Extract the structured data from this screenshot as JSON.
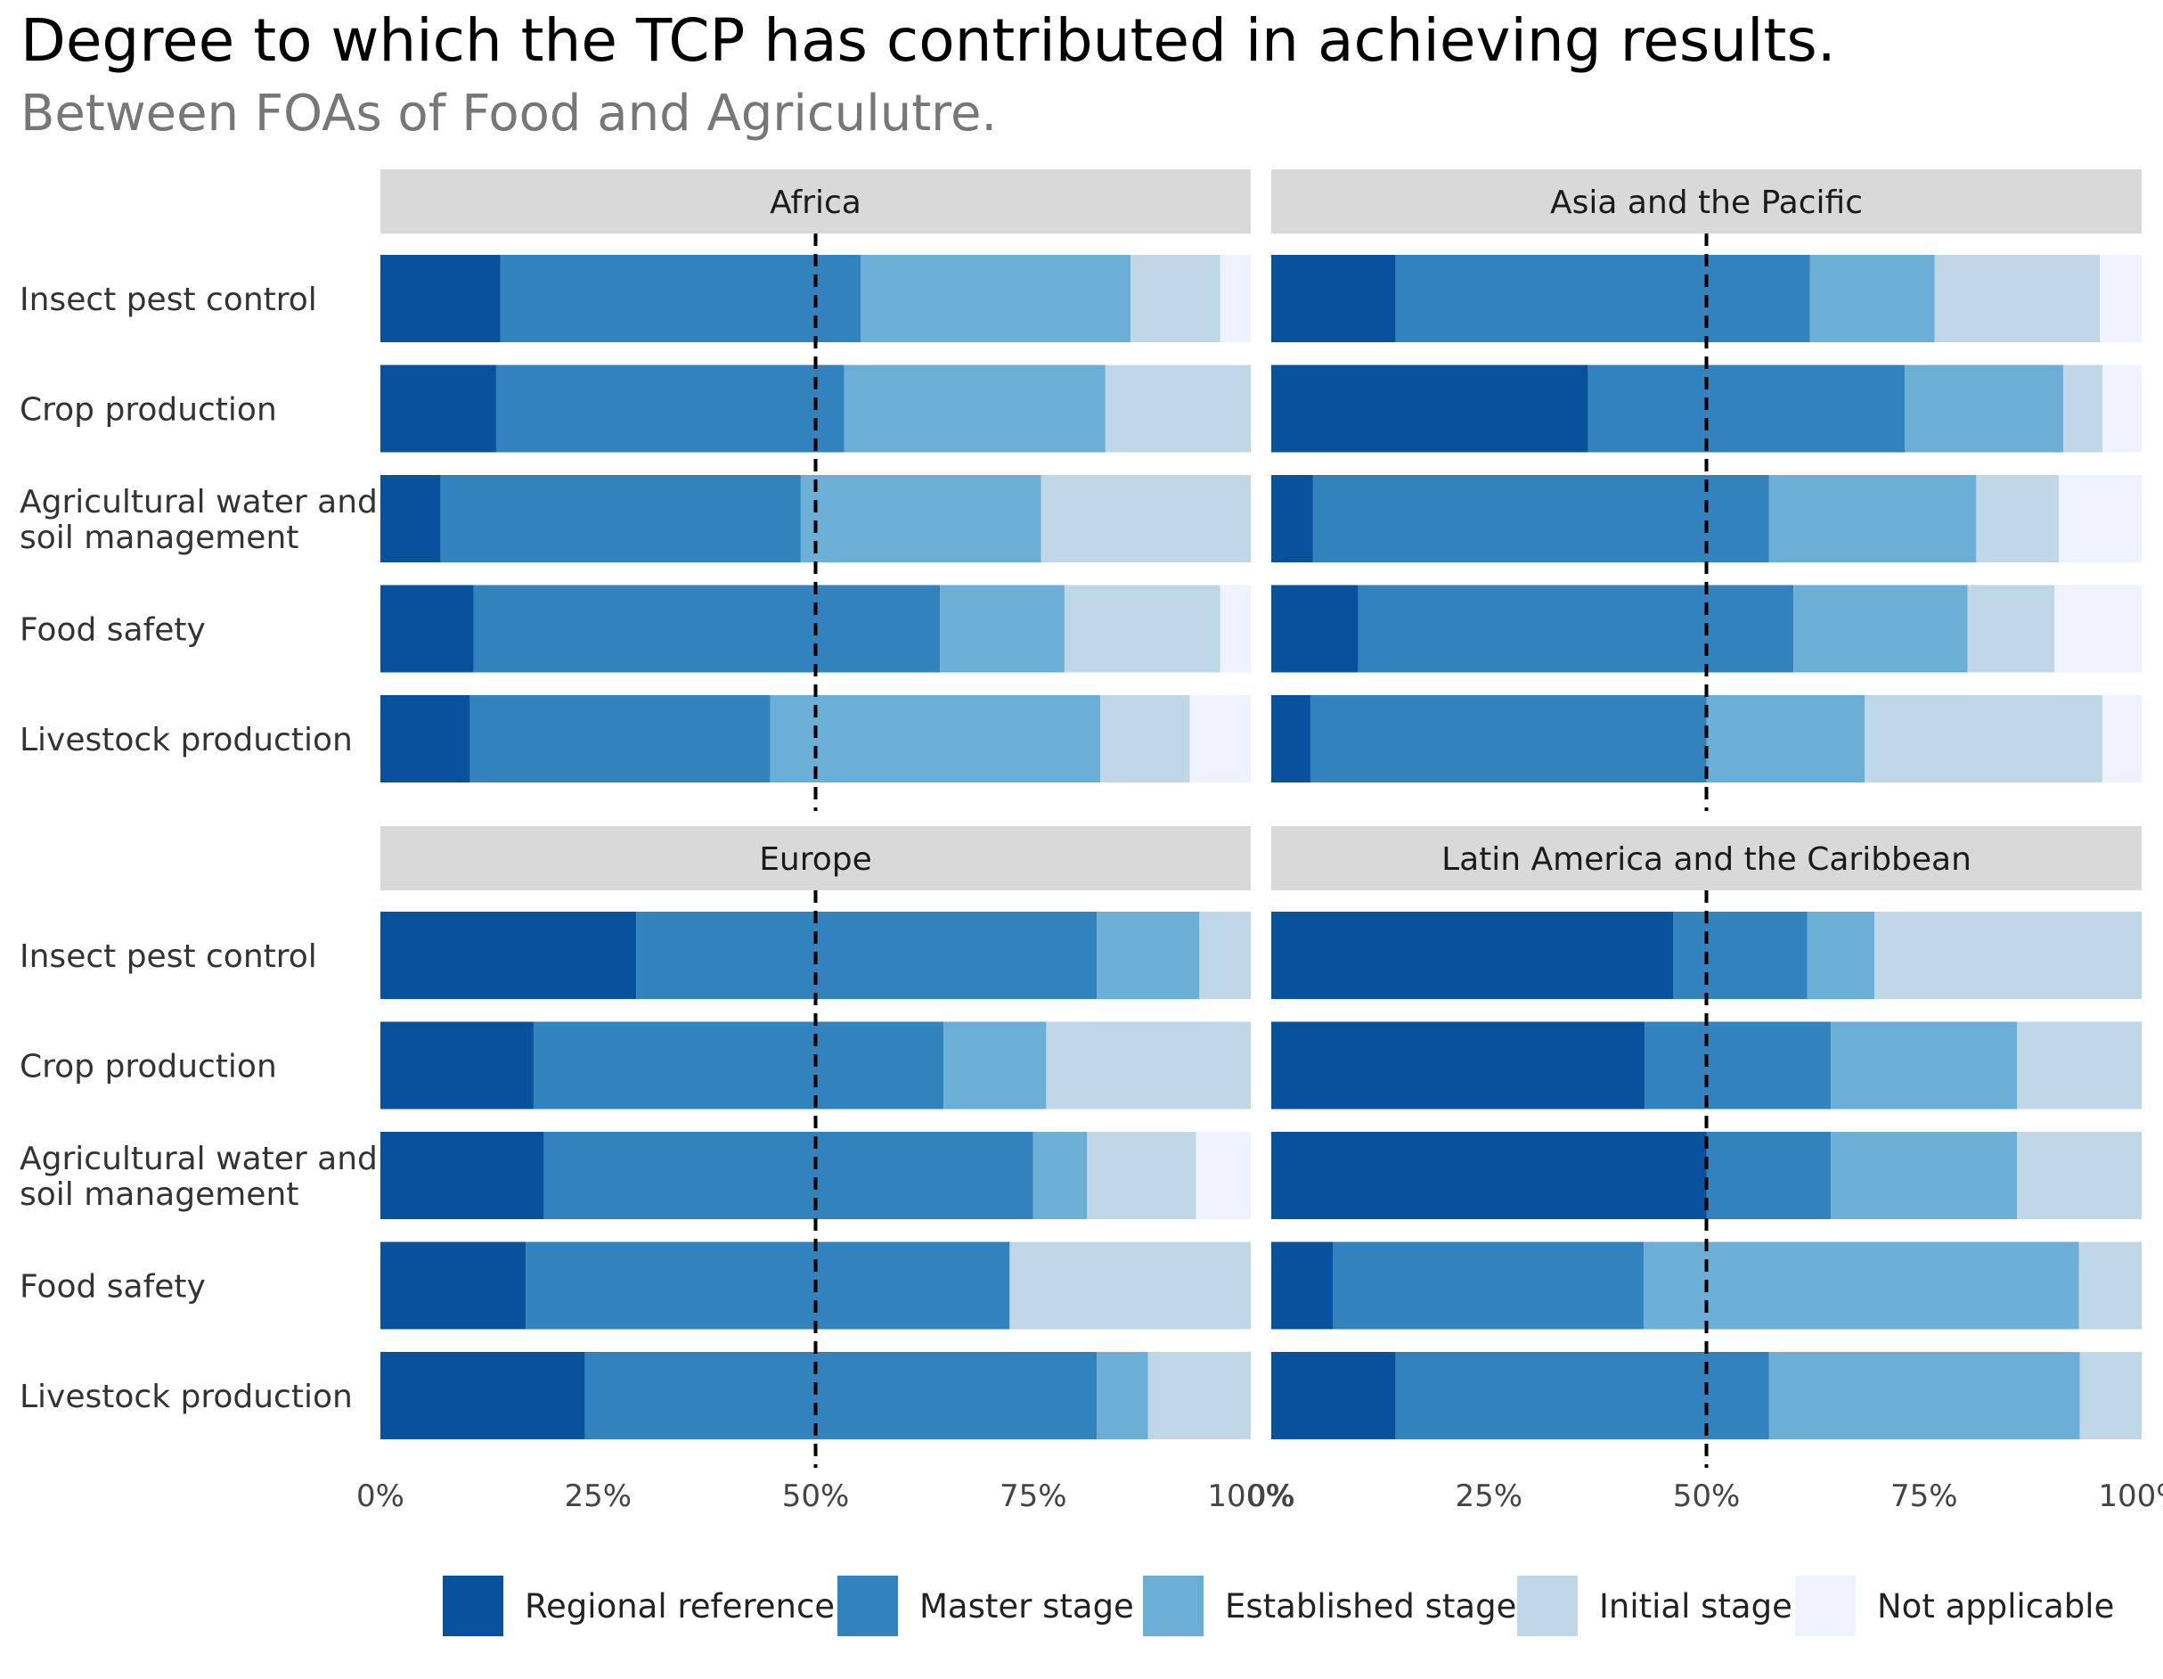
{
  "chart_data": {
    "type": "bar",
    "orientation": "horizontal",
    "stacked": "percent",
    "title": "Degree to which the TCP has contributed in achieving results.",
    "subtitle": "Between FOAs of Food and Agriculutre.",
    "xlim": [
      0,
      100
    ],
    "x_ticks": [
      "0%",
      "25%",
      "50%",
      "75%",
      "100%"
    ],
    "reference_line": 50,
    "legend_position": "bottom",
    "categories": [
      "Insect pest control",
      "Crop production",
      "Agricultural water and soil management",
      "Food safety",
      "Livestock production"
    ],
    "series": [
      {
        "name": "Regional reference",
        "color": "#08519c"
      },
      {
        "name": "Master stage",
        "color": "#3182bd"
      },
      {
        "name": "Established stage",
        "color": "#6baed6"
      },
      {
        "name": "Initial stage",
        "color": "#c0d7e7"
      },
      {
        "name": "Not applicable",
        "color": "#eff3ff"
      }
    ],
    "panels": [
      {
        "name": "Africa",
        "values": [
          [
            13.8,
            41.4,
            31.0,
            10.3,
            3.5
          ],
          [
            13.3,
            40.0,
            30.0,
            16.7,
            0
          ],
          [
            6.9,
            41.4,
            27.6,
            24.1,
            0
          ],
          [
            10.7,
            53.6,
            14.3,
            17.9,
            3.5
          ],
          [
            10.3,
            34.5,
            37.9,
            10.3,
            7.0
          ]
        ]
      },
      {
        "name": "Asia and the Pacific",
        "values": [
          [
            14.3,
            47.6,
            14.3,
            19.0,
            4.8
          ],
          [
            36.4,
            36.4,
            18.2,
            4.5,
            4.5
          ],
          [
            4.8,
            52.4,
            23.8,
            9.5,
            9.5
          ],
          [
            10.0,
            50.0,
            20.0,
            10.0,
            10.0
          ],
          [
            4.5,
            45.5,
            18.2,
            27.3,
            4.5
          ]
        ]
      },
      {
        "name": "Europe",
        "values": [
          [
            29.4,
            52.9,
            11.8,
            5.9,
            0
          ],
          [
            17.6,
            47.1,
            11.8,
            23.5,
            0
          ],
          [
            18.8,
            56.2,
            6.2,
            12.5,
            6.3
          ],
          [
            16.7,
            55.6,
            0,
            27.7,
            0
          ],
          [
            23.5,
            58.8,
            5.9,
            11.8,
            0
          ]
        ]
      },
      {
        "name": "Latin America and the Caribbean",
        "values": [
          [
            46.2,
            15.4,
            7.7,
            30.7,
            0
          ],
          [
            42.9,
            21.4,
            21.4,
            14.3,
            0
          ],
          [
            50.0,
            14.3,
            21.4,
            14.3,
            0
          ],
          [
            7.1,
            35.7,
            50.0,
            7.2,
            0
          ],
          [
            14.3,
            42.9,
            35.7,
            7.1,
            0
          ]
        ]
      }
    ]
  }
}
